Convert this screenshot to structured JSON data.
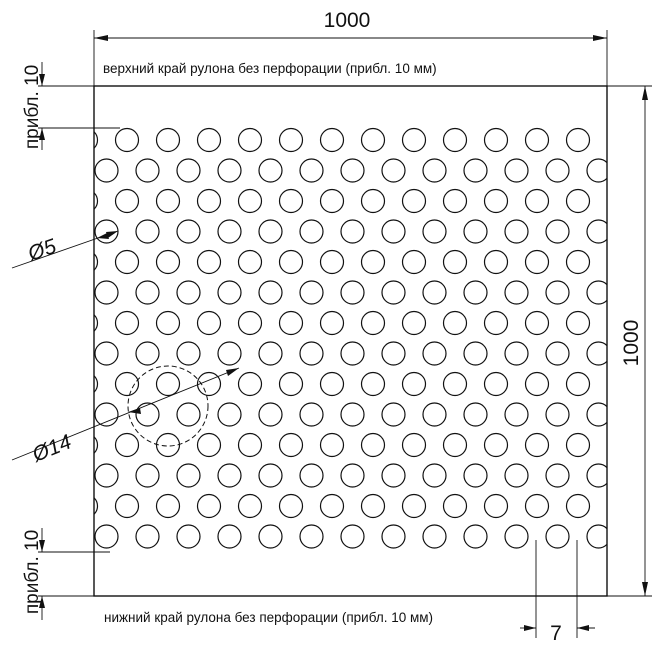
{
  "drawing": {
    "width_dim": "1000",
    "height_dim": "1000",
    "top_edge_note": "верхний край рулона без перфорации (прибл. 10 мм)",
    "bottom_edge_note": "нижний край рулона без перфорации (прибл. 10 мм)",
    "top_margin_dim": "прибл. 10",
    "bottom_margin_dim": "прибл. 10",
    "hole_diameter_dim": "Ø5",
    "group_diameter_dim": "Ø14",
    "pitch_dim": "7"
  },
  "colors": {
    "line": "#111111",
    "background": "#ffffff"
  }
}
